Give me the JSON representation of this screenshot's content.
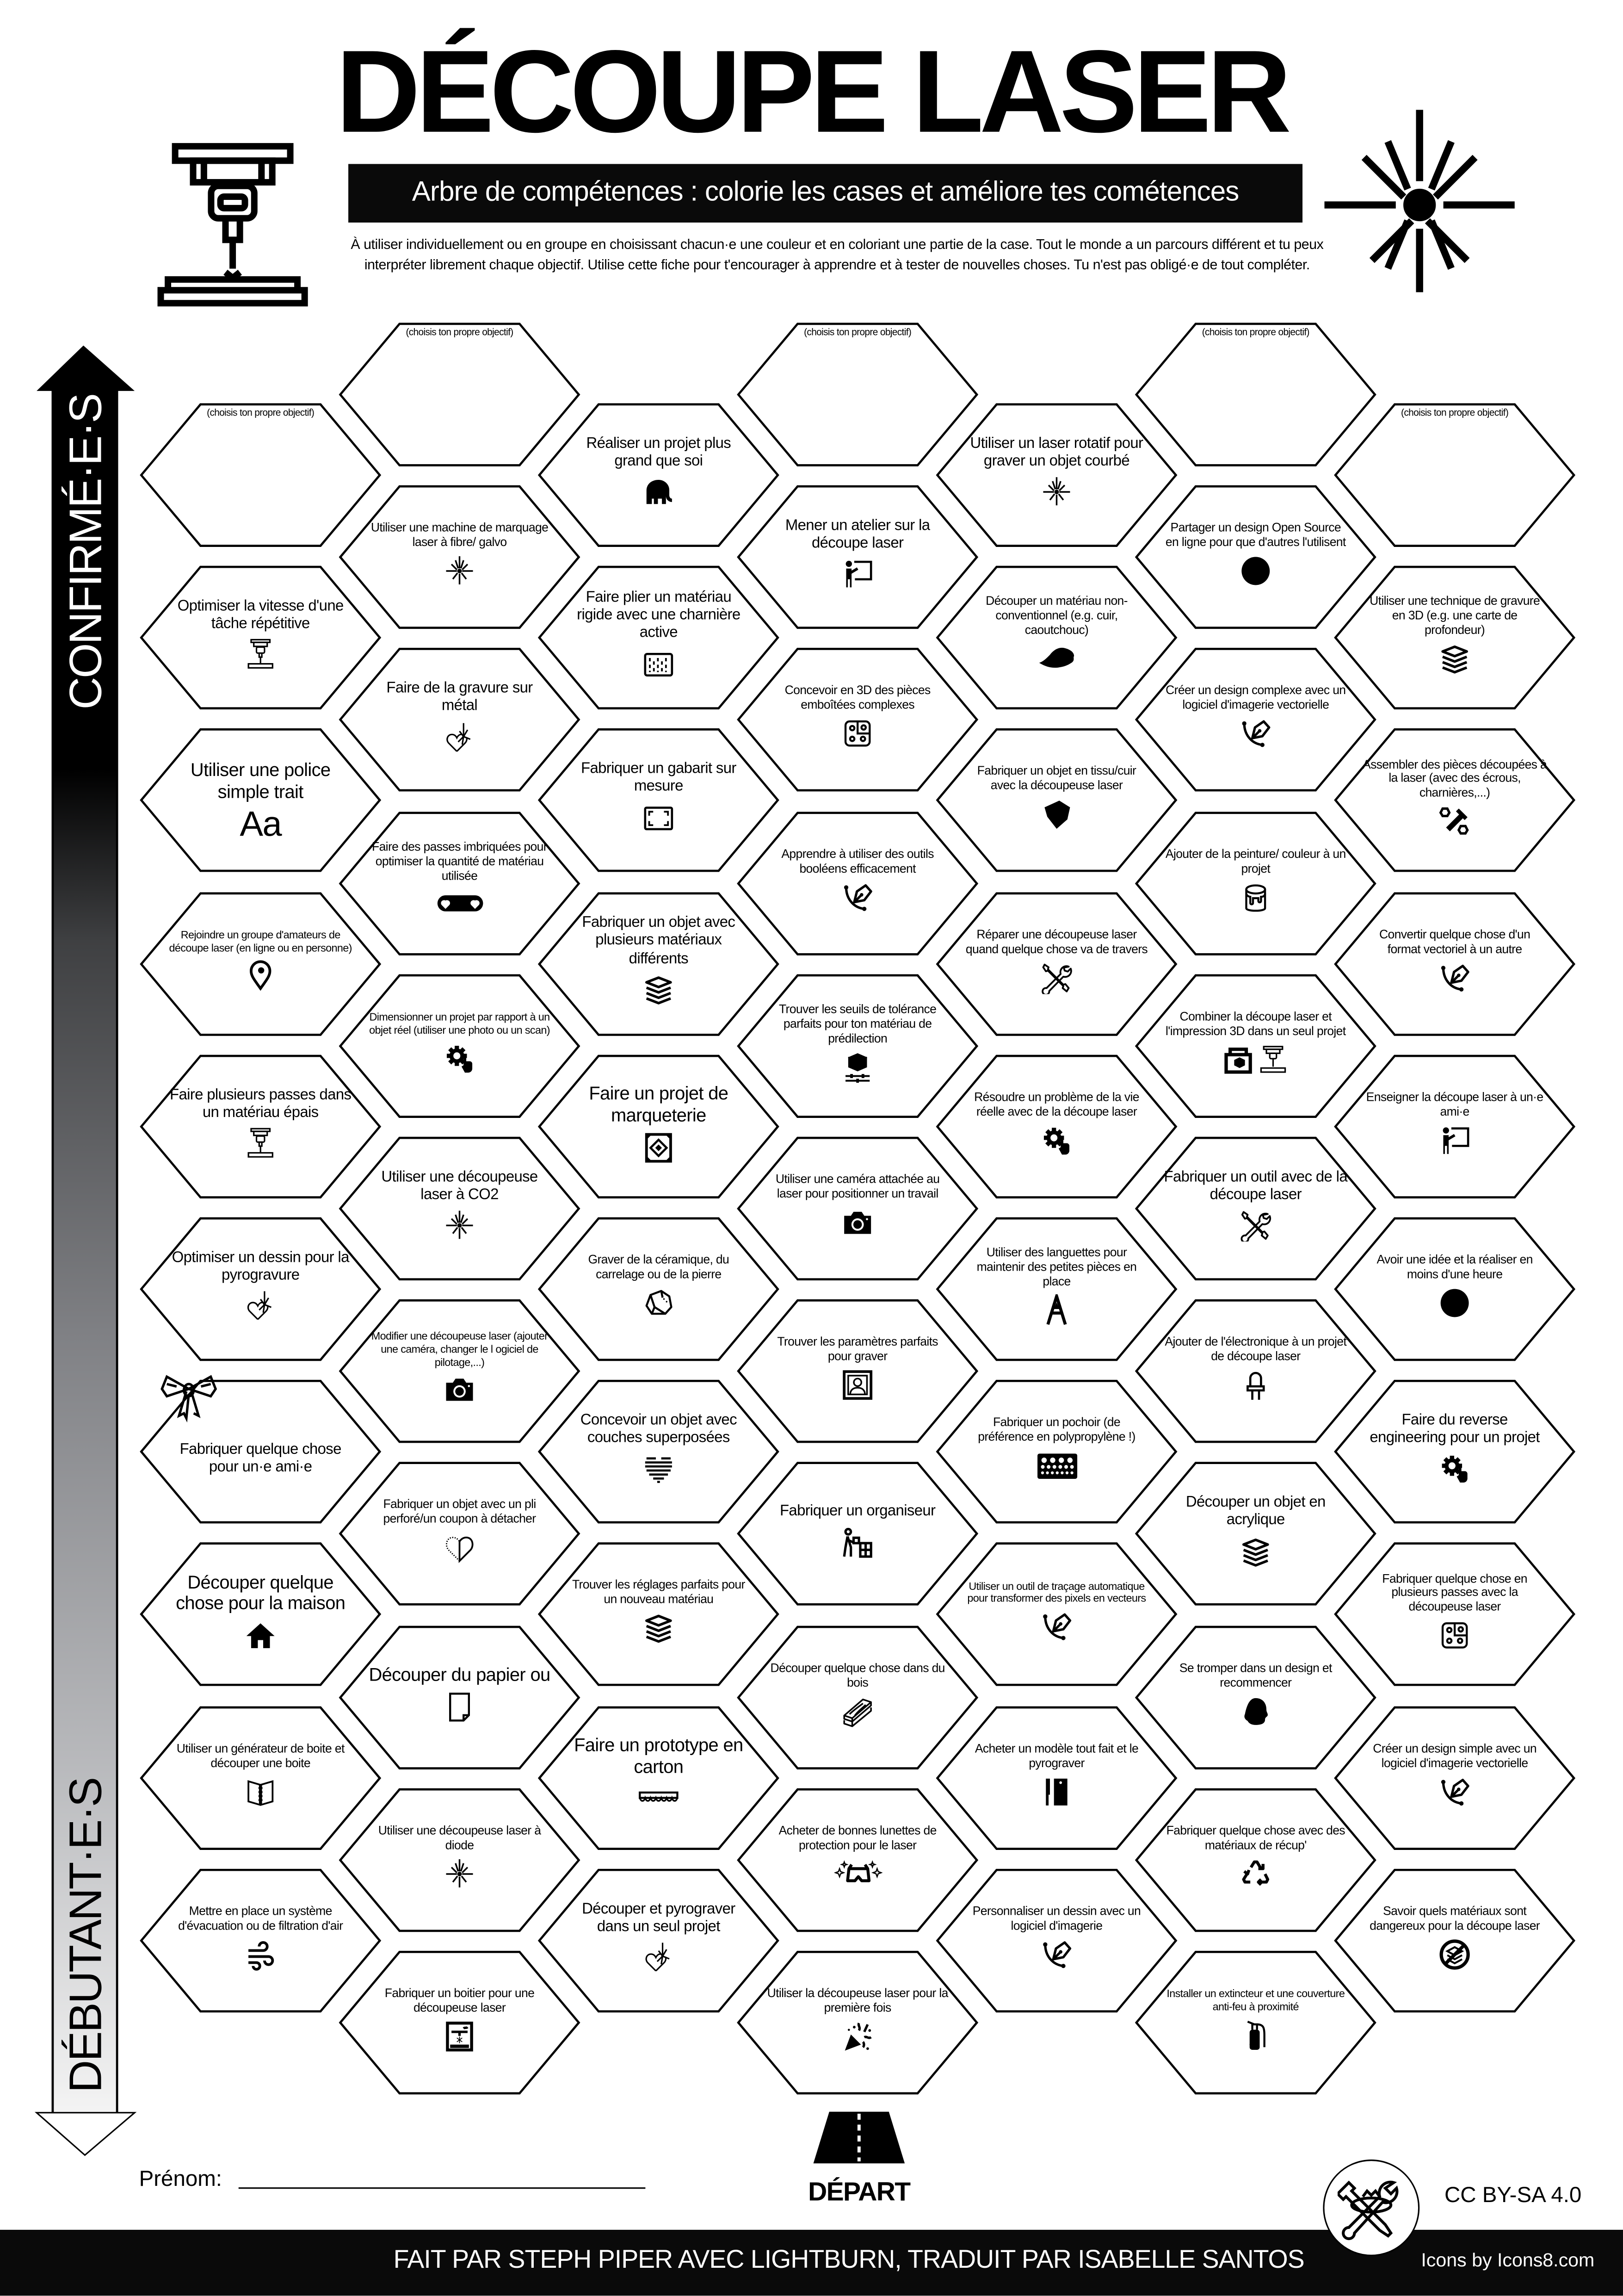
{
  "header": {
    "title": "DÉCOUPE LASER",
    "subtitle": "Arbre de compétences : colorie les cases et améliore tes cométences",
    "description": "À utiliser individuellement ou en groupe en choisissant chacun·e une couleur et en coloriant une partie de la case. Tout le monde a un parcours différent et tu peux interpréter librement chaque objectif. Utilise cette fiche pour t'encourager à apprendre et à tester de nouvelles choses. Tu n'est pas obligé·e de tout compléter.",
    "left_icon": "laser-machine-icon",
    "right_icon": "laser-burst-icon"
  },
  "level_axis": {
    "top_label": "CONFIRMÉ·E·S",
    "bottom_label": "DÉBUTANT·E·S"
  },
  "grid": {
    "columns": [
      {
        "cells": [
          {
            "label": "(choisis ton propre objectif)",
            "custom": true
          },
          {
            "label": "Optimiser la vitesse d'une tâche répétitive",
            "icon": "laser-machine"
          },
          {
            "label": "Utiliser une police simple trait",
            "icon": "font",
            "icon_text": "Aa"
          },
          {
            "label": "Rejoindre un groupe d'amateurs de découpe laser (en ligne ou en personne)",
            "icon": "location-pin"
          },
          {
            "label": "Faire plusieurs passes dans un matériau épais",
            "icon": "laser-machine"
          },
          {
            "label": "Optimiser un dessin pour la pyrogravure",
            "icon": "heart-laser"
          },
          {
            "label": "Fabriquer quelque chose pour un·e ami·e",
            "icon": "gift-bow"
          },
          {
            "label": "Découper quelque chose pour la maison",
            "icon": "house"
          },
          {
            "label": "Utiliser un générateur de boite et découper une boite",
            "icon": "box-book"
          },
          {
            "label": "Mettre en place un système d'évacuation ou de filtration d'air",
            "icon": "wind"
          }
        ]
      },
      {
        "cells": [
          {
            "label": "(choisis ton propre objectif)",
            "custom": true
          },
          {
            "label": "Utiliser une machine de marquage laser à fibre/ galvo",
            "icon": "laser-burst"
          },
          {
            "label": "Faire de la gravure sur métal",
            "icon": "heart-laser"
          },
          {
            "label": "Faire des passes imbriquées pour optimiser la quantité de matériau utilisée",
            "icon": "nesting"
          },
          {
            "label": "Dimensionner un projet par rapport à un objet réel (utiliser une photo ou un scan)",
            "icon": "gear-hand"
          },
          {
            "label": "Utiliser une découpeuse laser à CO2",
            "icon": "laser-burst"
          },
          {
            "label": "Modifier une découpeuse laser (ajouter une caméra, changer le l ogiciel de pilotage,...)",
            "icon": "camera"
          },
          {
            "label": "Fabriquer un objet avec un pli perforé/un coupon à détacher",
            "icon": "half-heart"
          },
          {
            "label": "Découper du papier ou",
            "icon": "paper"
          },
          {
            "label": "Utiliser une découpeuse laser à diode",
            "icon": "laser-burst"
          },
          {
            "label": "Fabriquer un boitier pour une découpeuse laser",
            "icon": "laser-enclosure"
          }
        ]
      },
      {
        "cells": [
          {
            "label": "Réaliser un projet plus grand que soi",
            "icon": "elephant"
          },
          {
            "label": "Faire plier un matériau rigide avec une charnière active",
            "icon": "living-hinge"
          },
          {
            "label": "Fabriquer un gabarit sur mesure",
            "icon": "jig-frame"
          },
          {
            "label": "Fabriquer un objet avec plusieurs matériaux différents",
            "icon": "layers"
          },
          {
            "label": "Faire un projet de marqueterie",
            "icon": "marquetry"
          },
          {
            "label": "Graver de la céramique, du carrelage ou de la pierre",
            "icon": "stone"
          },
          {
            "label": "Concevoir un objet avec couches superposées",
            "icon": "striped-heart"
          },
          {
            "label": "Trouver les réglages parfaits pour un nouveau matériau",
            "icon": "layers"
          },
          {
            "label": "Faire un prototype en carton",
            "icon": "cardboard"
          },
          {
            "label": "Découper et pyrograver dans un seul projet",
            "icon": "heart-laser"
          }
        ]
      },
      {
        "cells": [
          {
            "label": "(choisis ton propre objectif)",
            "custom": true
          },
          {
            "label": "Mener un atelier sur la découpe laser",
            "icon": "teacher"
          },
          {
            "label": "Concevoir en 3D des pièces emboîtées complexes",
            "icon": "puzzle-board"
          },
          {
            "label": "Apprendre à utiliser des outils booléens efficacement",
            "icon": "pen-tool"
          },
          {
            "label": "Trouver les seuils de tolérance parfaits pour ton matériau de prédilection",
            "icon": "cube-sliders"
          },
          {
            "label": "Utiliser une caméra attachée au laser pour positionner un travail",
            "icon": "camera"
          },
          {
            "label": "Trouver les paramètres parfaits pour graver",
            "icon": "portrait"
          },
          {
            "label": "Fabriquer un organiseur",
            "icon": "organizer"
          },
          {
            "label": "Découper quelque chose dans du bois",
            "icon": "wood-planks"
          },
          {
            "label": "Acheter de bonnes lunettes de protection pour le laser",
            "icon": "safety-goggles"
          },
          {
            "label": "Utiliser la découpeuse laser pour la première fois",
            "icon": "party-popper"
          }
        ]
      },
      {
        "cells": [
          {
            "label": "Utiliser un laser rotatif pour graver un objet courbé",
            "icon": "laser-burst"
          },
          {
            "label": "Découper un matériau non-conventionnel (e.g. cuir, caoutchouc)",
            "icon": "leaf"
          },
          {
            "label": "Fabriquer un objet en tissu/cuir avec la découpeuse laser",
            "icon": "leather"
          },
          {
            "label": "Réparer une découpeuse laser quand quelque chose va de travers",
            "icon": "tools"
          },
          {
            "label": "Résoudre un problème de la vie réelle avec de la découpe laser",
            "icon": "gear-hand"
          },
          {
            "label": "Utiliser des languettes pour maintenir des petites pièces en place",
            "icon": "letter-a"
          },
          {
            "label": "Fabriquer un pochoir (de préférence en polypropylène !)",
            "icon": "stencil"
          },
          {
            "label": "Utiliser un outil de traçage automatique pour transformer des pixels en vecteurs",
            "icon": "pen-tool"
          },
          {
            "label": "Acheter un modèle tout fait et le pyrograver",
            "icon": "knife-board"
          },
          {
            "label": "Personnaliser un dessin avec un logiciel d'imagerie",
            "icon": "pen-tool"
          }
        ]
      },
      {
        "cells": [
          {
            "label": "(choisis ton propre objectif)",
            "custom": true
          },
          {
            "label": "Partager un design Open Source en ligne pour que d'autres l'utilisent",
            "icon": "upload"
          },
          {
            "label": "Créer un design complexe avec un logiciel d'imagerie vectorielle",
            "icon": "pen-tool"
          },
          {
            "label": "Ajouter de la peinture/ couleur à un projet",
            "icon": "paint-bucket"
          },
          {
            "label": "Combiner la découpe laser et l'impression 3D dans un seul projet",
            "icon": "printer-3d-laser"
          },
          {
            "label": "Fabriquer un outil avec de la découpe laser",
            "icon": "tools"
          },
          {
            "label": "Ajouter de l'électronique à un projet de découpe laser",
            "icon": "led"
          },
          {
            "label": "Découper un objet en acrylique",
            "icon": "layers"
          },
          {
            "label": "Se tromper dans un design et recommencer",
            "icon": "facepalm"
          },
          {
            "label": "Fabriquer quelque chose avec des matériaux de récup'",
            "icon": "recycle"
          },
          {
            "label": "Installer un extincteur et une couverture anti-feu à proximité",
            "icon": "fire-extinguisher"
          }
        ]
      },
      {
        "cells": [
          {
            "label": "(choisis ton propre objectif)",
            "custom": true
          },
          {
            "label": "Utiliser une technique de gravure en 3D (e.g. une carte de profondeur)",
            "icon": "layers"
          },
          {
            "label": "Assembler des pièces découpées à la laser (avec des écrous, charnières,...)",
            "icon": "nuts-bolts"
          },
          {
            "label": "Convertir quelque chose d'un format vectoriel à un autre",
            "icon": "pen-tool"
          },
          {
            "label": "Enseigner la découpe laser à un·e ami·e",
            "icon": "teacher"
          },
          {
            "label": "Avoir une idée et la réaliser en moins d'une heure",
            "icon": "clock"
          },
          {
            "label": "Faire du reverse engineering pour un projet",
            "icon": "gear-hand"
          },
          {
            "label": "Fabriquer quelque chose en plusieurs passes avec la découpeuse laser",
            "icon": "puzzle-board"
          },
          {
            "label": "Créer un design simple avec un logiciel d'imagerie vectorielle",
            "icon": "pen-tool"
          },
          {
            "label": "Savoir quels matériaux sont dangereux pour la découpe laser",
            "icon": "no-layers"
          }
        ]
      }
    ]
  },
  "footer": {
    "name_label": "Prénom:",
    "start_label": "DÉPART",
    "start_icon": "road-icon",
    "license": "CC BY-SA 4.0",
    "credit": "FAIT PAR STEPH PIPER AVEC LIGHTBURN, TRADUIT PAR ISABELLE SANTOS",
    "icons_credit": "Icons by Icons8.com",
    "logo_icon": "crossed-tools-logo"
  },
  "colors": {
    "ink": "#000000",
    "paper": "#ffffff",
    "banner": "#0a0a0a"
  }
}
